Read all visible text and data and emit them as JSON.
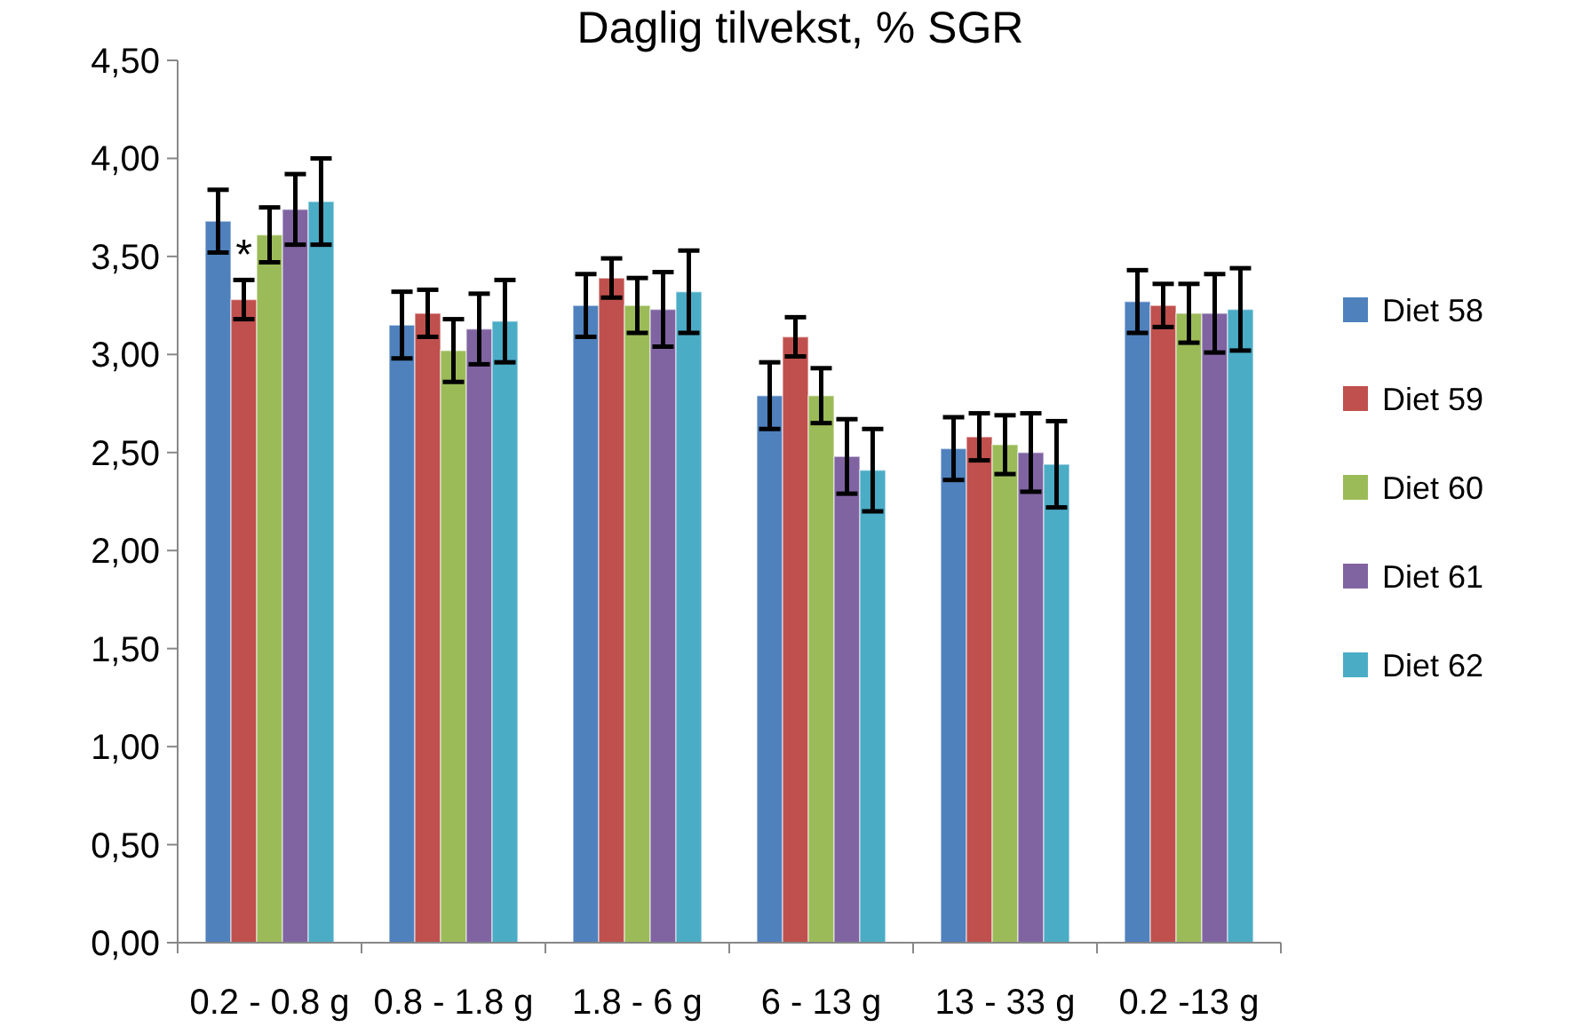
{
  "chart_data": {
    "type": "bar",
    "title": "Daglig tilvekst, % SGR",
    "categories": [
      "0.2 - 0.8 g",
      "0.8 - 1.8 g",
      "1.8 - 6 g",
      "6 - 13 g",
      "13 - 33 g",
      "0.2 -13 g"
    ],
    "series": [
      {
        "name": "Diet 58",
        "color": "#4f81bd",
        "values": [
          3.68,
          3.15,
          3.25,
          2.79,
          2.52,
          3.27
        ],
        "errors": [
          0.16,
          0.17,
          0.16,
          0.17,
          0.16,
          0.16
        ]
      },
      {
        "name": "Diet 59",
        "color": "#c0504d",
        "values": [
          3.28,
          3.21,
          3.39,
          3.09,
          2.58,
          3.25
        ],
        "errors": [
          0.1,
          0.12,
          0.1,
          0.1,
          0.12,
          0.11
        ]
      },
      {
        "name": "Diet 60",
        "color": "#9bbb59",
        "values": [
          3.61,
          3.02,
          3.25,
          2.79,
          2.54,
          3.21
        ],
        "errors": [
          0.14,
          0.16,
          0.14,
          0.14,
          0.15,
          0.15
        ]
      },
      {
        "name": "Diet 61",
        "color": "#8064a2",
        "values": [
          3.74,
          3.13,
          3.23,
          2.48,
          2.5,
          3.21
        ],
        "errors": [
          0.18,
          0.18,
          0.19,
          0.19,
          0.2,
          0.2
        ]
      },
      {
        "name": "Diet 62",
        "color": "#4bacc6",
        "values": [
          3.78,
          3.17,
          3.32,
          2.41,
          2.44,
          3.23
        ],
        "errors": [
          0.22,
          0.21,
          0.21,
          0.21,
          0.22,
          0.21
        ]
      }
    ],
    "ylim": [
      0,
      4.5
    ],
    "yticks": [
      {
        "value": 0,
        "label": "0,00"
      },
      {
        "value": 0.5,
        "label": "0,50"
      },
      {
        "value": 1,
        "label": "1,00"
      },
      {
        "value": 1.5,
        "label": "1,50"
      },
      {
        "value": 2,
        "label": "2,00"
      },
      {
        "value": 2.5,
        "label": "2,50"
      },
      {
        "value": 3,
        "label": "3,00"
      },
      {
        "value": 3.5,
        "label": "3,50"
      },
      {
        "value": 4,
        "label": "4,00"
      },
      {
        "value": 4.5,
        "label": "4,50"
      }
    ],
    "annotations": [
      "*"
    ],
    "legend": "right",
    "grid": false
  }
}
